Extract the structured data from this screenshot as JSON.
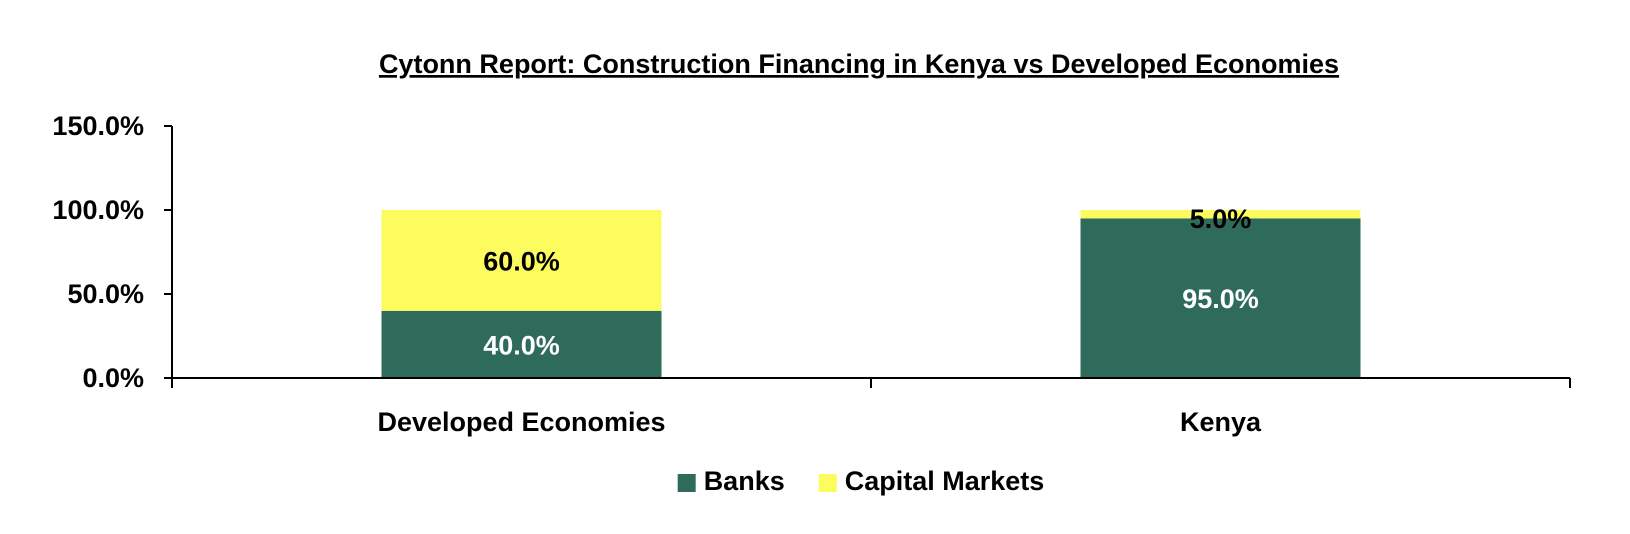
{
  "chart_data": {
    "type": "bar",
    "stacked": true,
    "title": "Cytonn Report: Construction Financing in Kenya vs Developed Economies",
    "xlabel": "",
    "ylabel": "",
    "categories": [
      "Developed Economies",
      "Kenya"
    ],
    "series": [
      {
        "name": "Banks",
        "color": "#2E6B5B",
        "values": [
          40.0,
          95.0
        ],
        "labels": [
          "40.0%",
          "95.0%"
        ],
        "label_color": "#FFFFFF"
      },
      {
        "name": "Capital Markets",
        "color": "#FCFC5E",
        "values": [
          60.0,
          5.0
        ],
        "labels": [
          "60.0%",
          "5.0%"
        ],
        "label_color": "#000000"
      }
    ],
    "ylim": [
      0,
      150
    ],
    "yticks": [
      0,
      50,
      100,
      150
    ],
    "ytick_labels": [
      "0.0%",
      "50.0%",
      "100.0%",
      "150.0%"
    ],
    "grid": false,
    "legend_position": "bottom-center"
  }
}
